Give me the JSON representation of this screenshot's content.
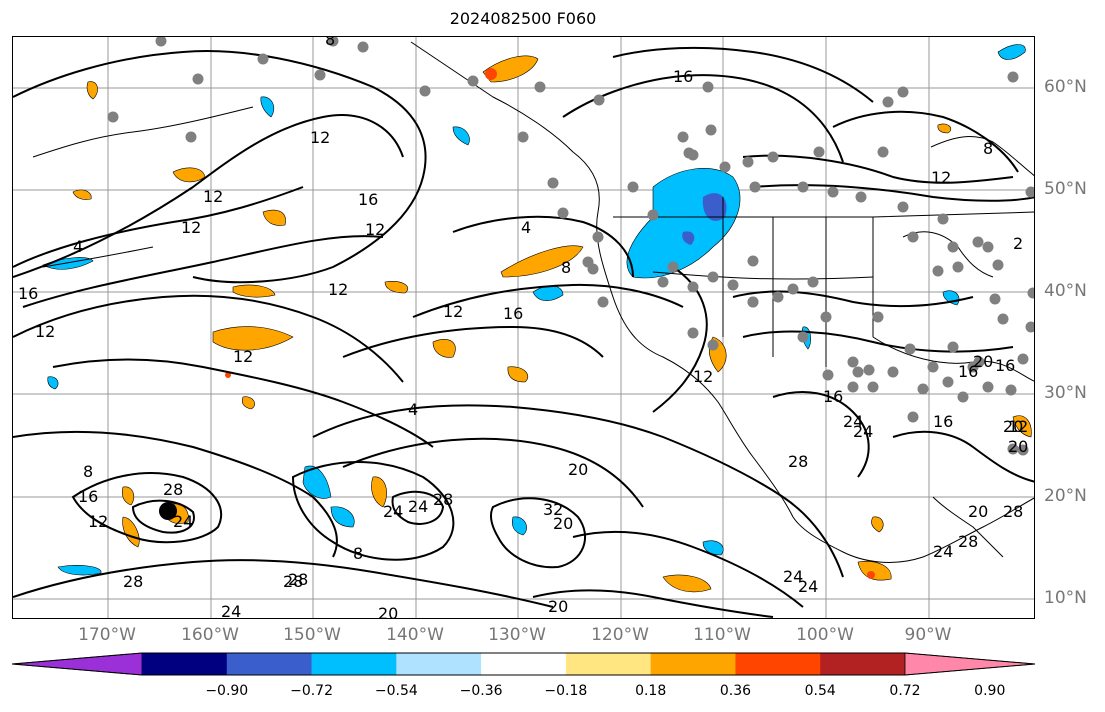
{
  "title": "2024082500 F060",
  "lon_labels": [
    "170°W",
    "160°W",
    "150°W",
    "140°W",
    "130°W",
    "120°W",
    "110°W",
    "100°W",
    "90°W"
  ],
  "lat_labels": [
    "60°N",
    "50°N",
    "40°N",
    "30°N",
    "20°N",
    "10°N"
  ],
  "contour_labels": [
    "8",
    "16",
    "12",
    "12",
    "4",
    "12",
    "16",
    "12",
    "4",
    "12",
    "12",
    "16",
    "12",
    "16",
    "12",
    "8",
    "4",
    "8",
    "12",
    "16",
    "16",
    "2",
    "8",
    "12",
    "12",
    "20",
    "16",
    "16",
    "24",
    "20",
    "24",
    "20",
    "12",
    "16",
    "28",
    "24",
    "28",
    "24",
    "28",
    "8",
    "24",
    "32",
    "20",
    "28",
    "28",
    "24",
    "20",
    "20",
    "24",
    "24",
    "20",
    "28",
    "28",
    "20",
    "24",
    "28"
  ],
  "colorbar": {
    "ticks": [
      "−0.90",
      "−0.72",
      "−0.54",
      "−0.36",
      "−0.18",
      "0.18",
      "0.36",
      "0.54",
      "0.72",
      "0.90"
    ],
    "colors": [
      "#9b30d9",
      "#000080",
      "#3a5fcd",
      "#00bfff",
      "#aee2ff",
      "#ffffff",
      "#ffe680",
      "#ffa500",
      "#ff4500",
      "#b22222",
      "#ff88aa"
    ]
  },
  "colors": {
    "coast": "#000000",
    "grid": "#999999",
    "station": "#808080",
    "cyclone": "#000000"
  }
}
